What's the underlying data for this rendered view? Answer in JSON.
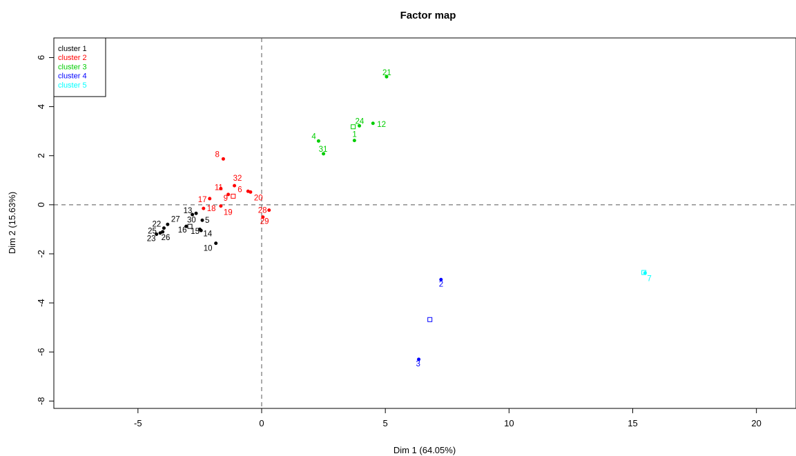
{
  "chart_data": {
    "type": "scatter",
    "title": "Factor map",
    "xlabel": "Dim 1 (64.05%)",
    "ylabel": "Dim 2 (15.63%)",
    "xlim": [
      -8.4,
      21.6
    ],
    "ylim": [
      -8.3,
      6.8
    ],
    "xticks": [
      -5,
      0,
      5,
      10,
      15,
      20
    ],
    "yticks": [
      -8,
      -6,
      -4,
      -2,
      0,
      2,
      4,
      6
    ],
    "grid": false,
    "reference_lines": {
      "x": 0,
      "y": 0,
      "style": "dashed"
    },
    "legend": {
      "position": "top-left",
      "entries": [
        {
          "label": "cluster 1",
          "color": "#000000"
        },
        {
          "label": "cluster 2",
          "color": "#ff0000"
        },
        {
          "label": "cluster 3",
          "color": "#00cd00"
        },
        {
          "label": "cluster 4",
          "color": "#0000ff"
        },
        {
          "label": "cluster 5",
          "color": "#00ffff"
        }
      ]
    },
    "series": [
      {
        "color": "#000000",
        "points": [
          {
            "label": "13",
            "x": -2.8,
            "y": -0.4
          },
          {
            "label": "30",
            "x": -2.65,
            "y": -0.35
          },
          {
            "label": "5",
            "x": -2.4,
            "y": -0.63
          },
          {
            "label": "27",
            "x": -3.8,
            "y": -0.8
          },
          {
            "label": "22",
            "x": -3.95,
            "y": -0.95
          },
          {
            "label": "25",
            "x": -4.1,
            "y": -1.15
          },
          {
            "label": "23",
            "x": -4.25,
            "y": -1.2
          },
          {
            "label": "26",
            "x": -4.0,
            "y": -1.1
          },
          {
            "label": "16",
            "x": -3.05,
            "y": -0.88
          },
          {
            "label": "15",
            "x": -2.45,
            "y": -1.05
          },
          {
            "label": "14",
            "x": -2.5,
            "y": -1.0
          },
          {
            "label": "10",
            "x": -1.85,
            "y": -1.57
          }
        ],
        "centroid": {
          "x": -2.9,
          "y": -0.88
        }
      },
      {
        "color": "#ff0000",
        "points": [
          {
            "label": "8",
            "x": -1.55,
            "y": 1.87
          },
          {
            "label": "32",
            "x": -1.1,
            "y": 0.78
          },
          {
            "label": "6",
            "x": -0.55,
            "y": 0.55
          },
          {
            "label": "20",
            "x": -0.45,
            "y": 0.52
          },
          {
            "label": "11",
            "x": -1.65,
            "y": 0.66
          },
          {
            "label": "9",
            "x": -1.35,
            "y": 0.42
          },
          {
            "label": "17",
            "x": -2.1,
            "y": 0.25
          },
          {
            "label": "18",
            "x": -2.35,
            "y": -0.15
          },
          {
            "label": "19",
            "x": -1.65,
            "y": -0.05
          },
          {
            "label": "28",
            "x": 0.3,
            "y": -0.22
          },
          {
            "label": "29",
            "x": 0.05,
            "y": -0.5
          }
        ],
        "centroid": {
          "x": -1.15,
          "y": 0.35
        }
      },
      {
        "color": "#00cd00",
        "points": [
          {
            "label": "21",
            "x": 5.05,
            "y": 5.22
          },
          {
            "label": "24",
            "x": 3.95,
            "y": 3.22
          },
          {
            "label": "12",
            "x": 4.5,
            "y": 3.32
          },
          {
            "label": "4",
            "x": 2.3,
            "y": 2.6
          },
          {
            "label": "1",
            "x": 3.75,
            "y": 2.62
          },
          {
            "label": "31",
            "x": 2.5,
            "y": 2.08
          }
        ],
        "centroid": {
          "x": 3.7,
          "y": 3.18
        }
      },
      {
        "color": "#0000ff",
        "points": [
          {
            "label": "2",
            "x": 7.25,
            "y": -3.05
          },
          {
            "label": "3",
            "x": 6.35,
            "y": -6.3
          }
        ],
        "centroid": {
          "x": 6.8,
          "y": -4.68
        }
      },
      {
        "color": "#00ffff",
        "points": [
          {
            "label": "7",
            "x": 15.5,
            "y": -2.78
          }
        ],
        "centroid": {
          "x": 15.45,
          "y": -2.76
        }
      }
    ]
  }
}
